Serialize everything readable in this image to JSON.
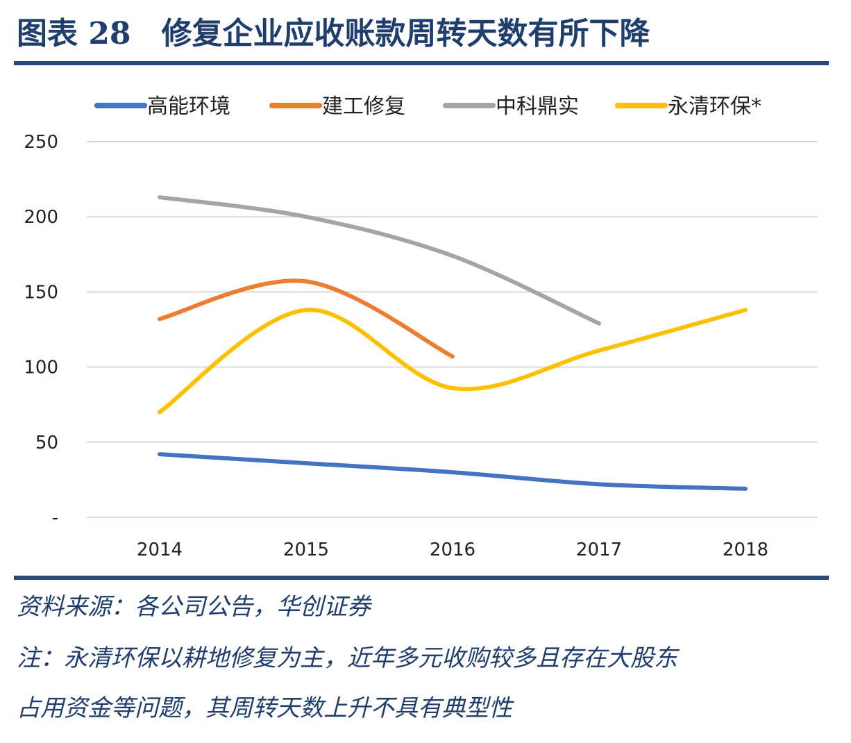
{
  "figure": {
    "label": "图表 28",
    "title": "修复企业应收账款周转天数有所下降"
  },
  "notes": {
    "source": "资料来源：各公司公告，华创证券",
    "note_line1": "注：永清环保以耕地修复为主，近年多元收购较多且存在大股东",
    "note_line2": "占用资金等问题，其周转天数上升不具有典型性"
  },
  "chart_data": {
    "type": "line",
    "categories": [
      "2014",
      "2015",
      "2016",
      "2017",
      "2018"
    ],
    "ylim": [
      0,
      250
    ],
    "yticks": [
      0,
      50,
      100,
      150,
      200,
      250
    ],
    "ytick_labels": [
      "-",
      "50",
      "100",
      "150",
      "200",
      "250"
    ],
    "grid": true,
    "smooth": true,
    "legend_position": "top",
    "series": [
      {
        "name": "高能环境",
        "color": "#4472c4",
        "values": [
          42,
          36,
          30,
          22,
          19
        ]
      },
      {
        "name": "建工修复",
        "color": "#ed7d31",
        "values": [
          132,
          157,
          107,
          null,
          null
        ]
      },
      {
        "name": "中科鼎实",
        "color": "#a5a5a5",
        "values": [
          213,
          200,
          174,
          129,
          null
        ]
      },
      {
        "name": "永清环保*",
        "color": "#ffc000",
        "values": [
          70,
          138,
          86,
          111,
          138
        ]
      }
    ]
  }
}
